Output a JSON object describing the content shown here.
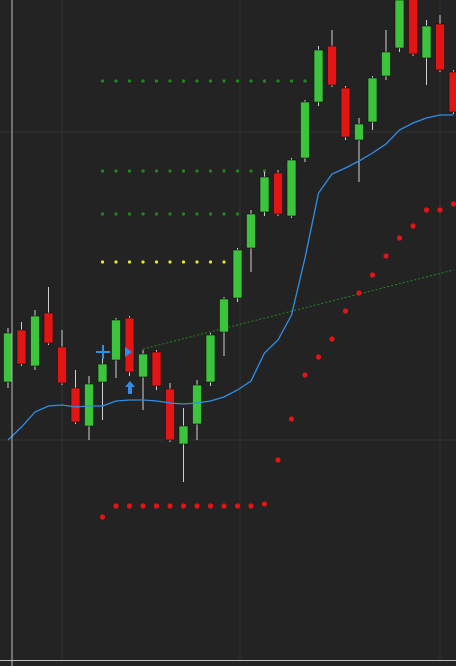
{
  "chart_data": {
    "type": "candlestick",
    "categories": [
      null,
      null,
      null,
      null,
      null,
      null,
      null,
      null,
      null,
      null,
      null,
      null,
      null,
      null,
      null,
      null,
      null,
      null,
      null,
      null,
      null,
      null,
      null,
      null,
      null,
      null,
      null,
      null,
      null,
      null,
      null,
      null,
      null,
      null
    ],
    "open": [
      284,
      336,
      300,
      353,
      319,
      278,
      240,
      284,
      306,
      348,
      289,
      314,
      277,
      222,
      242,
      284,
      334,
      368,
      418,
      454,
      493,
      450,
      508,
      564,
      620,
      578,
      526,
      544,
      590,
      618,
      680,
      608,
      642,
      594
    ],
    "close": [
      333,
      302,
      350,
      323,
      283,
      244,
      282,
      302,
      346,
      294,
      312,
      280,
      226,
      240,
      281,
      331,
      367,
      416,
      452,
      489,
      452,
      506,
      564,
      616,
      581,
      529,
      542,
      588,
      614,
      666,
      612,
      640,
      596,
      554
    ],
    "high": [
      338,
      344,
      356,
      379,
      336,
      296,
      290,
      314,
      348,
      350,
      316,
      316,
      283,
      258,
      286,
      333,
      369,
      418,
      456,
      494,
      496,
      508,
      566,
      620,
      636,
      580,
      548,
      590,
      636,
      680,
      690,
      646,
      651,
      596
    ],
    "low": [
      278,
      300,
      296,
      321,
      281,
      242,
      226,
      246,
      288,
      290,
      256,
      276,
      224,
      184,
      226,
      280,
      310,
      364,
      394,
      450,
      450,
      448,
      504,
      560,
      579,
      526,
      484,
      536,
      586,
      614,
      610,
      581,
      594,
      552
    ],
    "up_color": "#3cc43c",
    "down_color": "#e31414",
    "series": [
      {
        "kind": "line",
        "color": "#2f8fe8",
        "values": [
          226,
          239,
          254,
          260,
          261,
          259,
          260,
          260,
          265,
          266,
          266,
          265,
          263,
          262,
          263,
          265,
          269,
          276,
          285,
          313,
          326,
          351,
          408,
          473,
          492,
          498,
          505,
          513,
          522,
          536,
          543,
          548,
          551,
          551
        ]
      },
      {
        "kind": "dots",
        "color": "#e31414",
        "values": [
          null,
          null,
          null,
          null,
          null,
          null,
          null,
          149,
          160,
          160,
          160,
          160,
          160,
          160,
          160,
          160,
          160,
          160,
          160,
          162,
          206,
          247,
          291,
          309,
          327,
          355,
          373,
          391,
          410,
          428,
          440,
          456,
          456,
          462
        ]
      }
    ],
    "levels": [
      {
        "color": "#1e8a1e",
        "value": 585,
        "start": 7,
        "end": 22
      },
      {
        "color": "#1e8a1e",
        "value": 495,
        "start": 7,
        "end": 19
      },
      {
        "color": "#1e8a1e",
        "value": 452,
        "start": 7,
        "end": 17
      },
      {
        "color": "#e6e62a",
        "value": 404,
        "start": 7,
        "end": 16
      }
    ],
    "trendline": {
      "color": "#1e8a1e",
      "from": [
        10,
        317
      ],
      "to": [
        33,
        396
      ]
    },
    "ylim": [
      0,
      666
    ],
    "yticks": [
      226,
      534
    ],
    "grid": true
  }
}
